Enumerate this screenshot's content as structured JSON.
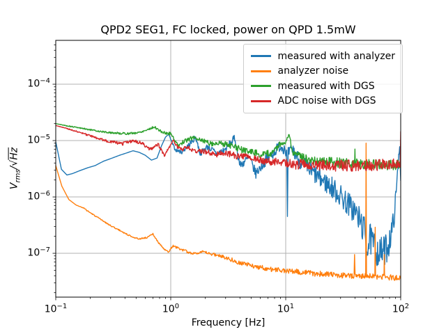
{
  "chart_data": {
    "type": "line",
    "title": "QPD2 SEG1, FC locked, power on QPD 1.5mW",
    "xlabel": "Frequency [Hz]",
    "ylabel": "Vrms/√Hz",
    "ylabel_parts": {
      "var": "V",
      "sub": "rms",
      "slash": "/",
      "radical_sign": "√",
      "radicand": "Hz"
    },
    "xscale": "log",
    "yscale": "log",
    "xlim": [
      0.1,
      100
    ],
    "ylim": [
      1.67e-08,
      0.0006
    ],
    "x_tick_exponents": [
      -1,
      0,
      1,
      2
    ],
    "y_tick_exponents": [
      -7,
      -6,
      -5,
      -4
    ],
    "grid": "major-both",
    "legend_position": "upper right",
    "colors": {
      "blue": "#1f77b4",
      "orange": "#ff7f0e",
      "green": "#2ca02c",
      "red": "#d62728"
    },
    "series": [
      {
        "name": "measured with analyzer",
        "color": "#1f77b4",
        "seed": 7,
        "density": 230,
        "points": [
          [
            0.1,
            9.5e-06,
            0
          ],
          [
            0.112,
            3.1e-06,
            0
          ],
          [
            0.125,
            2.45e-06,
            0
          ],
          [
            0.14,
            2.6e-06,
            0
          ],
          [
            0.16,
            2.9e-06,
            0
          ],
          [
            0.19,
            3.3e-06,
            0
          ],
          [
            0.22,
            3.6e-06,
            0
          ],
          [
            0.26,
            4.3e-06,
            0
          ],
          [
            0.31,
            4.9e-06,
            0
          ],
          [
            0.36,
            5.5e-06,
            0
          ],
          [
            0.41,
            6e-06,
            0
          ],
          [
            0.47,
            6.6e-06,
            0
          ],
          [
            0.53,
            6.2e-06,
            0
          ],
          [
            0.6,
            5.5e-06,
            0
          ],
          [
            0.68,
            4.5e-06,
            0
          ],
          [
            0.76,
            4.9e-06,
            0
          ],
          [
            0.83,
            8e-06,
            0
          ],
          [
            0.9,
            1.15e-05,
            0
          ],
          [
            0.96,
            1.3e-05,
            0
          ],
          [
            1.03,
            9e-06,
            0.02
          ],
          [
            1.1,
            6.8e-06,
            0.03
          ],
          [
            1.25,
            6.3e-06,
            0.04
          ],
          [
            1.45,
            8.5e-06,
            0.05
          ],
          [
            1.65,
            1.15e-05,
            0.05
          ],
          [
            1.8,
            5.9e-06,
            0.05
          ],
          [
            2.1,
            7.9e-06,
            0.06
          ],
          [
            2.5,
            5.8e-06,
            0.07
          ],
          [
            3.0,
            7e-06,
            0.07
          ],
          [
            3.6,
            1.1e-05,
            0.07
          ],
          [
            4.0,
            3.6e-06,
            0.08
          ],
          [
            4.8,
            5e-06,
            0.09
          ],
          [
            5.5,
            2.6e-06,
            0.09
          ],
          [
            6.5,
            4.2e-06,
            0.1
          ],
          [
            7.5,
            5.5e-06,
            0.1
          ],
          [
            8.8,
            8e-06,
            0.1
          ],
          [
            9.8,
            7.5e-06,
            0.12
          ],
          [
            10.2,
            6e-06,
            0.1
          ],
          [
            10.35,
            4.5e-07,
            0
          ],
          [
            10.5,
            6e-06,
            0.1
          ],
          [
            11.5,
            7e-06,
            0.12
          ],
          [
            13,
            4.5e-06,
            0.14
          ],
          [
            16,
            3e-06,
            0.16
          ],
          [
            20,
            2.1e-06,
            0.18
          ],
          [
            26,
            1.4e-06,
            0.2
          ],
          [
            33,
            8.5e-07,
            0.22
          ],
          [
            40,
            5.5e-07,
            0.24
          ],
          [
            46,
            3.2e-07,
            0.26
          ],
          [
            49.5,
            2.2e-07,
            0.26
          ],
          [
            50.3,
            1e-07,
            0.1
          ],
          [
            54,
            1.8e-07,
            0.28
          ],
          [
            60,
            1.2e-07,
            0.28
          ],
          [
            66,
            1e-07,
            0.28
          ],
          [
            72,
            1.1e-07,
            0.28
          ],
          [
            78,
            1.4e-07,
            0.26
          ],
          [
            84,
            2.5e-07,
            0.22
          ],
          [
            89,
            6e-07,
            0.18
          ],
          [
            93,
            2e-06,
            0.12
          ],
          [
            96,
            5.5e-06,
            0.06
          ],
          [
            98,
            7.8e-06,
            0.03
          ],
          [
            100,
            2e-06,
            0.02
          ]
        ]
      },
      {
        "name": "analyzer noise",
        "color": "#ff7f0e",
        "seed": 3,
        "density": 230,
        "points": [
          [
            0.1,
            3.6e-06,
            0
          ],
          [
            0.113,
            1.55e-06,
            0
          ],
          [
            0.13,
            9e-07,
            0
          ],
          [
            0.15,
            7.2e-07,
            0
          ],
          [
            0.175,
            6.3e-07,
            0.01
          ],
          [
            0.21,
            4.9e-07,
            0.01
          ],
          [
            0.25,
            3.9e-07,
            0.01
          ],
          [
            0.3,
            3.1e-07,
            0.01
          ],
          [
            0.36,
            2.55e-07,
            0.012
          ],
          [
            0.43,
            2.1e-07,
            0.012
          ],
          [
            0.52,
            1.8e-07,
            0.012
          ],
          [
            0.62,
            1.9e-07,
            0.012
          ],
          [
            0.7,
            2.2e-07,
            0.012
          ],
          [
            0.78,
            1.55e-07,
            0.015
          ],
          [
            0.87,
            1.2e-07,
            0.015
          ],
          [
            0.95,
            1.05e-07,
            0.015
          ],
          [
            1.05,
            1.35e-07,
            0.02
          ],
          [
            1.2,
            1.2e-07,
            0.02
          ],
          [
            1.5,
            1e-07,
            0.025
          ],
          [
            1.9,
            1.05e-07,
            0.025
          ],
          [
            2.4,
            9.5e-08,
            0.03
          ],
          [
            3.0,
            8.5e-08,
            0.035
          ],
          [
            4.0,
            6.8e-08,
            0.04
          ],
          [
            5.5,
            5.8e-08,
            0.04
          ],
          [
            7.5,
            5.2e-08,
            0.045
          ],
          [
            10,
            4.9e-08,
            0.045
          ],
          [
            14,
            4.6e-08,
            0.05
          ],
          [
            20,
            4.3e-08,
            0.05
          ],
          [
            28,
            4.1e-08,
            0.05
          ],
          [
            39.3,
            4e-08,
            0.05
          ],
          [
            39.7,
            9.5e-08,
            0
          ],
          [
            40.1,
            4e-08,
            0.05
          ],
          [
            49.6,
            4e-08,
            0.05
          ],
          [
            50.0,
            9e-06,
            0
          ],
          [
            50.4,
            4e-08,
            0.05
          ],
          [
            59.6,
            3.9e-08,
            0.05
          ],
          [
            60.0,
            2.9e-07,
            0
          ],
          [
            60.4,
            3.9e-08,
            0.05
          ],
          [
            71.6,
            3.8e-08,
            0.05
          ],
          [
            72.0,
            9.5e-08,
            0
          ],
          [
            72.4,
            3.8e-08,
            0.05
          ],
          [
            85,
            3.7e-08,
            0.05
          ],
          [
            100,
            3.6e-08,
            0.05
          ]
        ]
      },
      {
        "name": "measured with DGS",
        "color": "#2ca02c",
        "seed": 5,
        "density": 230,
        "points": [
          [
            0.1,
            2e-05,
            0
          ],
          [
            0.13,
            1.8e-05,
            0.01
          ],
          [
            0.17,
            1.65e-05,
            0.01
          ],
          [
            0.22,
            1.5e-05,
            0.015
          ],
          [
            0.28,
            1.4e-05,
            0.015
          ],
          [
            0.35,
            1.35e-05,
            0.02
          ],
          [
            0.43,
            1.33e-05,
            0.02
          ],
          [
            0.52,
            1.38e-05,
            0.02
          ],
          [
            0.62,
            1.55e-05,
            0.02
          ],
          [
            0.72,
            1.75e-05,
            0.02
          ],
          [
            0.82,
            1.45e-05,
            0.025
          ],
          [
            0.92,
            1.33e-05,
            0.025
          ],
          [
            1.0,
            1.35e-05,
            0.03
          ],
          [
            1.15,
            8.2e-06,
            0.03
          ],
          [
            1.35,
            1e-05,
            0.04
          ],
          [
            1.6,
            1.15e-05,
            0.04
          ],
          [
            1.9,
            1e-05,
            0.045
          ],
          [
            2.3,
            8.8e-06,
            0.05
          ],
          [
            2.8,
            9e-06,
            0.05
          ],
          [
            3.4,
            8e-06,
            0.055
          ],
          [
            4.2,
            6.8e-06,
            0.06
          ],
          [
            5.2,
            6.3e-06,
            0.06
          ],
          [
            6.3,
            5.6e-06,
            0.06
          ],
          [
            7.5,
            6e-06,
            0.065
          ],
          [
            8.7,
            8.2e-06,
            0.06
          ],
          [
            9.9,
            9e-06,
            0.06
          ],
          [
            10.7,
            1.3e-05,
            0.01
          ],
          [
            11.5,
            6e-06,
            0.07
          ],
          [
            13.5,
            5e-06,
            0.08
          ],
          [
            17,
            4.6e-06,
            0.085
          ],
          [
            22,
            4.3e-06,
            0.09
          ],
          [
            30,
            4e-06,
            0.09
          ],
          [
            39.7,
            4e-06,
            0.09
          ],
          [
            40.0,
            7e-06,
            0.01
          ],
          [
            40.3,
            3.9e-06,
            0.09
          ],
          [
            55,
            3.8e-06,
            0.09
          ],
          [
            75,
            3.7e-06,
            0.09
          ],
          [
            100,
            3.7e-06,
            0.09
          ]
        ]
      },
      {
        "name": "ADC noise with DGS",
        "color": "#d62728",
        "seed": 9,
        "density": 230,
        "points": [
          [
            0.1,
            1.85e-05,
            0
          ],
          [
            0.13,
            1.6e-05,
            0.01
          ],
          [
            0.17,
            1.35e-05,
            0.015
          ],
          [
            0.23,
            1.1e-05,
            0.02
          ],
          [
            0.3,
            9.5e-06,
            0.025
          ],
          [
            0.38,
            8.8e-06,
            0.03
          ],
          [
            0.47,
            1e-05,
            0.03
          ],
          [
            0.56,
            9e-06,
            0.03
          ],
          [
            0.66,
            7e-06,
            0.03
          ],
          [
            0.78,
            8.5e-06,
            0.03
          ],
          [
            0.88,
            5.4e-06,
            0.02
          ],
          [
            1.05,
            1e-05,
            0.02
          ],
          [
            1.2,
            6.9e-06,
            0.04
          ],
          [
            1.4,
            7.6e-06,
            0.04
          ],
          [
            1.7,
            6.3e-06,
            0.045
          ],
          [
            2.0,
            6.5e-06,
            0.05
          ],
          [
            2.4,
            5.6e-06,
            0.05
          ],
          [
            3.0,
            6e-06,
            0.055
          ],
          [
            3.8,
            5.3e-06,
            0.06
          ],
          [
            4.8,
            5e-06,
            0.06
          ],
          [
            6.0,
            4.5e-06,
            0.065
          ],
          [
            7.5,
            4.2e-06,
            0.07
          ],
          [
            9.5,
            4e-06,
            0.08
          ],
          [
            12,
            3.8e-06,
            0.09
          ],
          [
            16,
            3.7e-06,
            0.095
          ],
          [
            22,
            3.6e-06,
            0.1
          ],
          [
            30,
            3.6e-06,
            0.1
          ],
          [
            45,
            3.6e-06,
            0.1
          ],
          [
            65,
            3.7e-06,
            0.1
          ],
          [
            85,
            3.8e-06,
            0.1
          ],
          [
            99,
            4e-06,
            0.08
          ],
          [
            100,
            1.45e-05,
            0
          ]
        ]
      }
    ]
  }
}
